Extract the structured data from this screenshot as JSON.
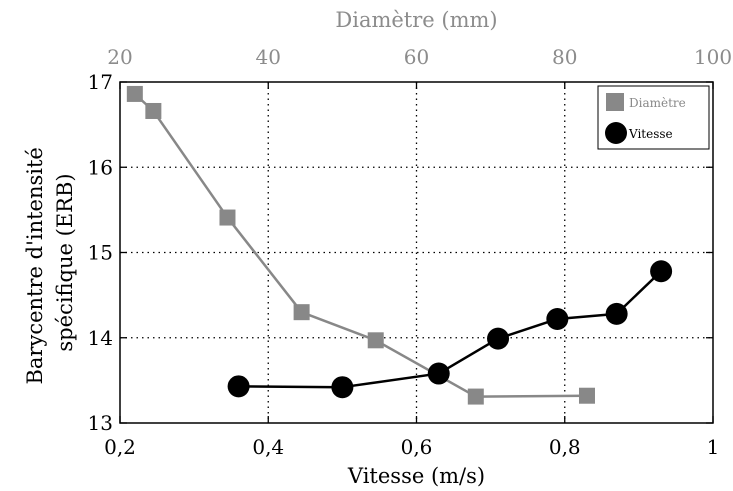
{
  "chart_data": {
    "type": "line",
    "xlabel": "Vitesse (m/s)",
    "x2label": "Diamètre (mm)",
    "ylabel_lines": [
      "Barycentre d'intensité",
      "spécifique (ERB)"
    ],
    "xlim": [
      0.2,
      1.0
    ],
    "x2lim": [
      20,
      100
    ],
    "ylim": [
      13,
      17
    ],
    "xticks": [
      "0,2",
      "0,4",
      "0,6",
      "0,8",
      "1"
    ],
    "x2ticks": [
      "20",
      "40",
      "60",
      "80",
      "100"
    ],
    "yticks": [
      "13",
      "14",
      "15",
      "16",
      "17"
    ],
    "grid": true,
    "legend_position": "top-right",
    "colors": {
      "diametre": "#888888",
      "vitesse": "#000000",
      "top_axis": "#8c8c8c",
      "grid": "#000000"
    },
    "series": [
      {
        "name": "Diamètre",
        "axis": "top",
        "marker": "square",
        "x": [
          22,
          24.5,
          34.5,
          44.5,
          54.5,
          68,
          83
        ],
        "y": [
          16.86,
          16.66,
          15.41,
          14.3,
          13.97,
          13.31,
          13.32
        ]
      },
      {
        "name": "Vitesse",
        "axis": "bottom",
        "marker": "circle",
        "x": [
          0.36,
          0.5,
          0.63,
          0.71,
          0.79,
          0.87,
          0.93
        ],
        "y": [
          13.43,
          13.42,
          13.58,
          13.99,
          14.22,
          14.28,
          14.78
        ]
      }
    ]
  }
}
